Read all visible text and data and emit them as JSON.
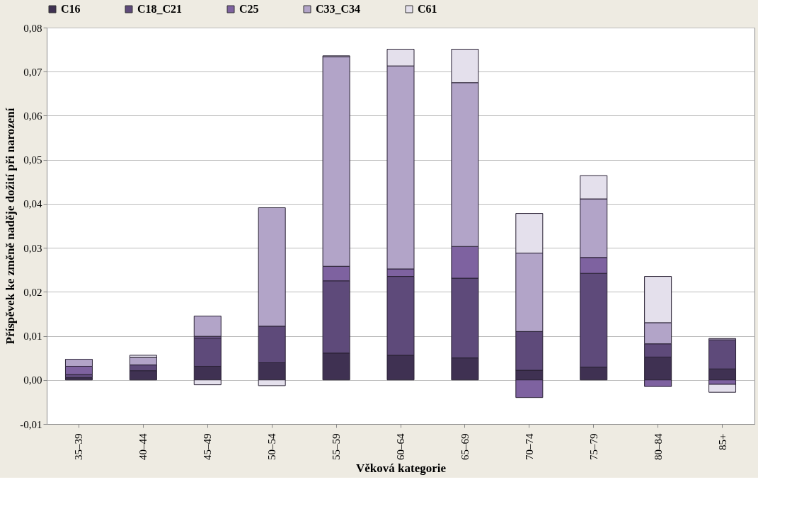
{
  "chart_data": {
    "type": "bar",
    "stacked": true,
    "xlabel": "Věková kategorie",
    "ylabel": "Příspěvek ke změně naděje dožití při narození",
    "categories": [
      "35–39",
      "40–44",
      "45–49",
      "50–54",
      "55–59",
      "60–64",
      "65–69",
      "70–74",
      "75–79",
      "80–84",
      "85+"
    ],
    "series": [
      {
        "name": "C16",
        "color": "#3f3152",
        "values": [
          0.0005,
          0.0021,
          0.0031,
          0.0039,
          0.0061,
          0.0056,
          0.005,
          0.0022,
          0.0029,
          0.0052,
          0.0025
        ]
      },
      {
        "name": "C18_C21",
        "color": "#5e4a7a",
        "values": [
          0.0007,
          0.0013,
          0.0064,
          0.0083,
          0.0164,
          0.0179,
          0.0181,
          0.0088,
          0.0213,
          0.003,
          0.0066
        ]
      },
      {
        "name": "C25",
        "color": "#7e62a0",
        "values": [
          0.0019,
          null,
          0.0004,
          null,
          0.0033,
          0.0017,
          0.0072,
          -0.004,
          0.0036,
          -0.0015,
          -0.001
        ]
      },
      {
        "name": "C33_C34",
        "color": "#b2a4c8",
        "values": [
          0.0016,
          0.0017,
          0.0046,
          0.0269,
          0.0476,
          0.0461,
          0.0372,
          0.0178,
          0.0133,
          0.0048,
          0.0003
        ]
      },
      {
        "name": "C61",
        "color": "#e4e0ec",
        "values": [
          null,
          0.0005,
          -0.0011,
          -0.0013,
          0.0002,
          0.0038,
          0.0076,
          0.009,
          0.0053,
          0.0105,
          -0.0018
        ]
      }
    ],
    "ylim": [
      -0.01,
      0.08
    ],
    "yticks": [
      {
        "value": -0.01,
        "label": "-0,01"
      },
      {
        "value": 0,
        "label": "0,00"
      },
      {
        "value": 0.01,
        "label": "0,01"
      },
      {
        "value": 0.02,
        "label": "0,02"
      },
      {
        "value": 0.03,
        "label": "0,03"
      },
      {
        "value": 0.04,
        "label": "0,04"
      },
      {
        "value": 0.05,
        "label": "0,05"
      },
      {
        "value": 0.06,
        "label": "0,06"
      },
      {
        "value": 0.07,
        "label": "0,07"
      },
      {
        "value": 0.08,
        "label": "0,08"
      }
    ],
    "grid": "y",
    "legend": "top"
  }
}
